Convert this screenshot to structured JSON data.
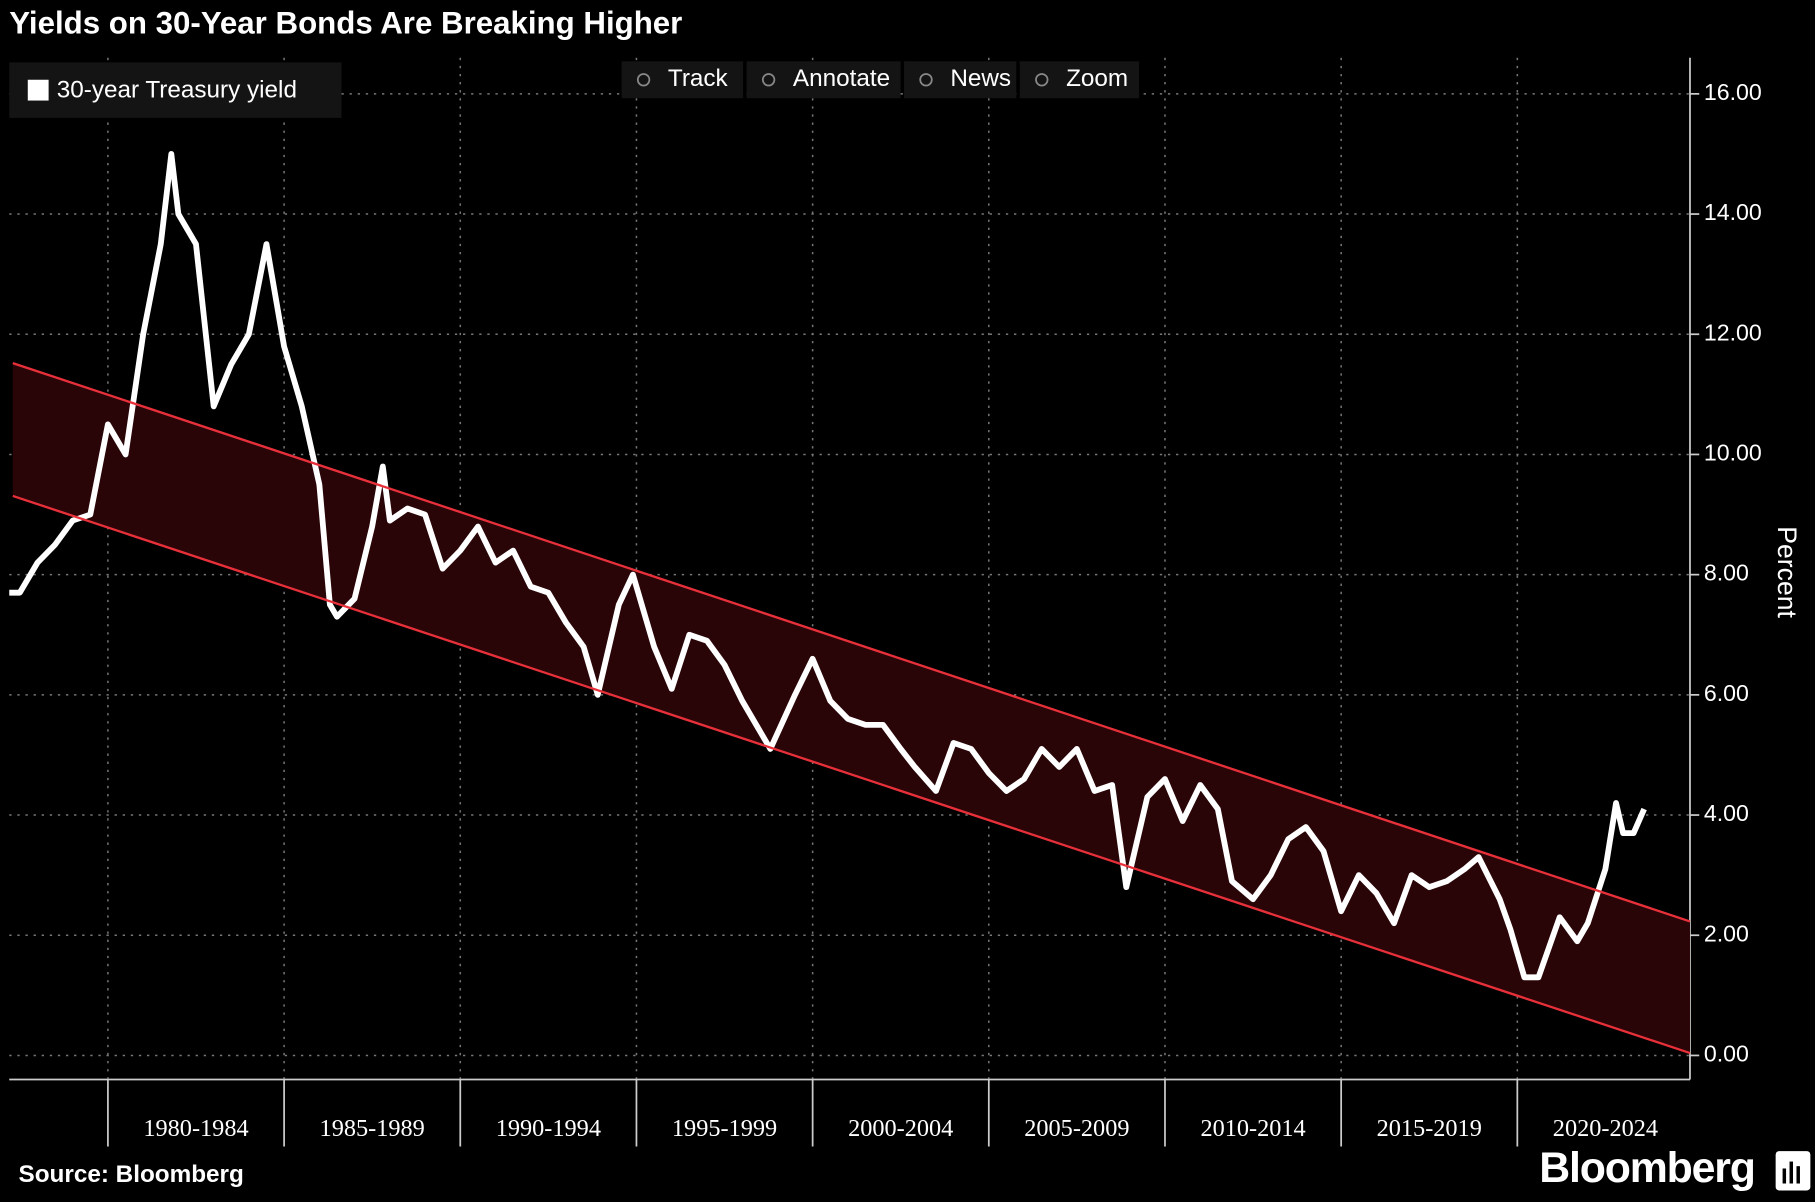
{
  "chart_data": {
    "type": "line",
    "title": "Yields on 30-Year Bonds Are Breaking Higher",
    "source": "Source: Bloomberg",
    "brand": "Bloomberg",
    "toolbar": [
      "Track",
      "Annotate",
      "News",
      "Zoom"
    ],
    "y_label": "Percent",
    "legend": "top-left",
    "grid": true,
    "x": [
      1977.2,
      1977.5,
      1978.0,
      1978.5,
      1979.0,
      1979.5,
      1980.0,
      1980.5,
      1981.0,
      1981.5,
      1981.8,
      1982.0,
      1982.5,
      1983.0,
      1983.5,
      1984.0,
      1984.5,
      1985.0,
      1985.5,
      1986.0,
      1986.3,
      1986.5,
      1987.0,
      1987.5,
      1987.8,
      1988.0,
      1988.5,
      1989.0,
      1989.5,
      1990.0,
      1990.5,
      1991.0,
      1991.5,
      1992.0,
      1992.5,
      1993.0,
      1993.5,
      1993.9,
      1994.5,
      1994.9,
      1995.5,
      1996.0,
      1996.5,
      1997.0,
      1997.5,
      1998.0,
      1998.8,
      1999.5,
      2000.0,
      2000.5,
      2001.0,
      2001.5,
      2002.0,
      2002.5,
      2002.9,
      2003.5,
      2004.0,
      2004.5,
      2005.0,
      2005.5,
      2006.0,
      2006.5,
      2007.0,
      2007.5,
      2008.0,
      2008.5,
      2008.9,
      2009.5,
      2010.0,
      2010.5,
      2011.0,
      2011.5,
      2011.9,
      2012.5,
      2013.0,
      2013.5,
      2014.0,
      2014.5,
      2015.0,
      2015.5,
      2016.0,
      2016.5,
      2017.0,
      2017.5,
      2018.0,
      2018.5,
      2018.9,
      2019.5,
      2019.8,
      2020.2,
      2020.6,
      2021.2,
      2021.7,
      2022.0,
      2022.5,
      2022.8,
      2023.0,
      2023.3,
      2023.6
    ],
    "series": [
      {
        "name": "30-year Treasury yield",
        "color": "#ffffff",
        "values": [
          7.7,
          7.7,
          8.2,
          8.5,
          8.9,
          9.0,
          10.5,
          10.0,
          12.0,
          13.5,
          15.0,
          14.0,
          13.5,
          10.8,
          11.5,
          12.0,
          13.5,
          11.8,
          10.8,
          9.5,
          7.5,
          7.3,
          7.6,
          8.8,
          9.8,
          8.9,
          9.1,
          9.0,
          8.1,
          8.4,
          8.8,
          8.2,
          8.4,
          7.8,
          7.7,
          7.2,
          6.8,
          6.0,
          7.5,
          8.0,
          6.8,
          6.1,
          7.0,
          6.9,
          6.5,
          5.9,
          5.1,
          6.0,
          6.6,
          5.9,
          5.6,
          5.5,
          5.5,
          5.1,
          4.8,
          4.4,
          5.2,
          5.1,
          4.7,
          4.4,
          4.6,
          5.1,
          4.8,
          5.1,
          4.4,
          4.5,
          2.8,
          4.3,
          4.6,
          3.9,
          4.5,
          4.1,
          2.9,
          2.6,
          3.0,
          3.6,
          3.8,
          3.4,
          2.4,
          3.0,
          2.7,
          2.2,
          3.0,
          2.8,
          2.9,
          3.1,
          3.3,
          2.6,
          2.1,
          1.3,
          1.3,
          2.3,
          1.9,
          2.2,
          3.1,
          4.2,
          3.7,
          3.7,
          4.1
        ]
      }
    ],
    "channel": {
      "color": "#e8303a",
      "fill": "#2a0508",
      "upper": [
        [
          1977.3,
          11.52
        ],
        [
          2024.9,
          2.23
        ]
      ],
      "lower": [
        [
          1977.3,
          9.31
        ],
        [
          2024.9,
          0.04
        ]
      ]
    },
    "xlim": [
      1977.2,
      2024.9
    ],
    "xticks": [
      {
        "value": 1980,
        "label": "1980-1984"
      },
      {
        "value": 1985,
        "label": "1985-1989"
      },
      {
        "value": 1990,
        "label": "1990-1994"
      },
      {
        "value": 1995,
        "label": "1995-1999"
      },
      {
        "value": 2000,
        "label": "2000-2004"
      },
      {
        "value": 2005,
        "label": "2005-2009"
      },
      {
        "value": 2010,
        "label": "2010-2014"
      },
      {
        "value": 2015,
        "label": "2015-2019"
      },
      {
        "value": 2020,
        "label": "2020-2024"
      }
    ],
    "ylim": [
      -0.4,
      16.6
    ],
    "yticks": [
      {
        "value": 0,
        "label": "0.00"
      },
      {
        "value": 2,
        "label": "2.00"
      },
      {
        "value": 4,
        "label": "4.00"
      },
      {
        "value": 6,
        "label": "6.00"
      },
      {
        "value": 8,
        "label": "8.00"
      },
      {
        "value": 10,
        "label": "10.00"
      },
      {
        "value": 12,
        "label": "12.00"
      },
      {
        "value": 14,
        "label": "14.00"
      },
      {
        "value": 16,
        "label": "16.00"
      }
    ]
  }
}
